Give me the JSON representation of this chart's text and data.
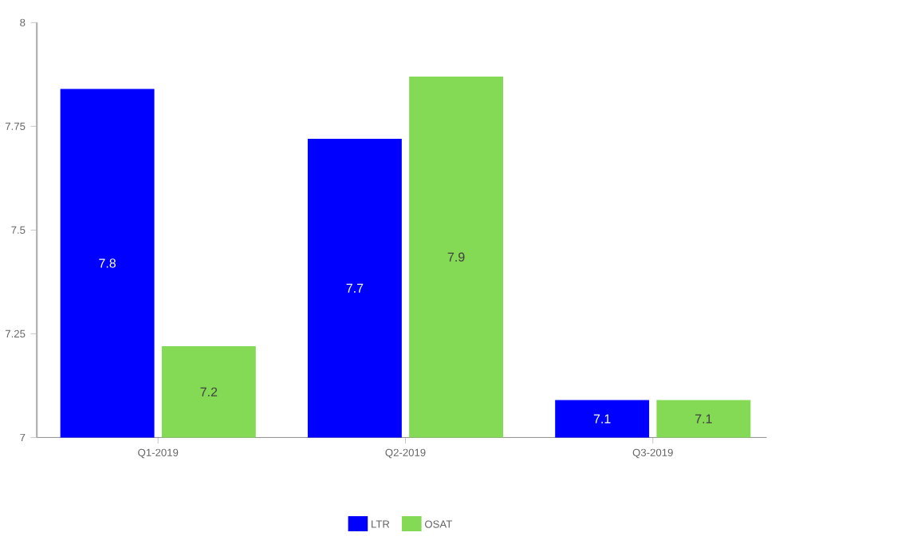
{
  "chart_data": {
    "type": "bar",
    "categories": [
      "Q1-2019",
      "Q2-2019",
      "Q3-2019"
    ],
    "series": [
      {
        "name": "LTR",
        "color": "#0000ff",
        "values": [
          7.84,
          7.72,
          7.09
        ],
        "value_labels": [
          "7.8",
          "7.7",
          "7.1"
        ]
      },
      {
        "name": "OSAT",
        "color": "#84d955",
        "values": [
          7.22,
          7.87,
          7.09
        ],
        "value_labels": [
          "7.2",
          "7.9",
          "7.1"
        ]
      }
    ],
    "ylim": [
      7,
      8
    ],
    "yticks": [
      7,
      7.25,
      7.5,
      7.75,
      8
    ],
    "grid": false,
    "legend": "bottom"
  }
}
